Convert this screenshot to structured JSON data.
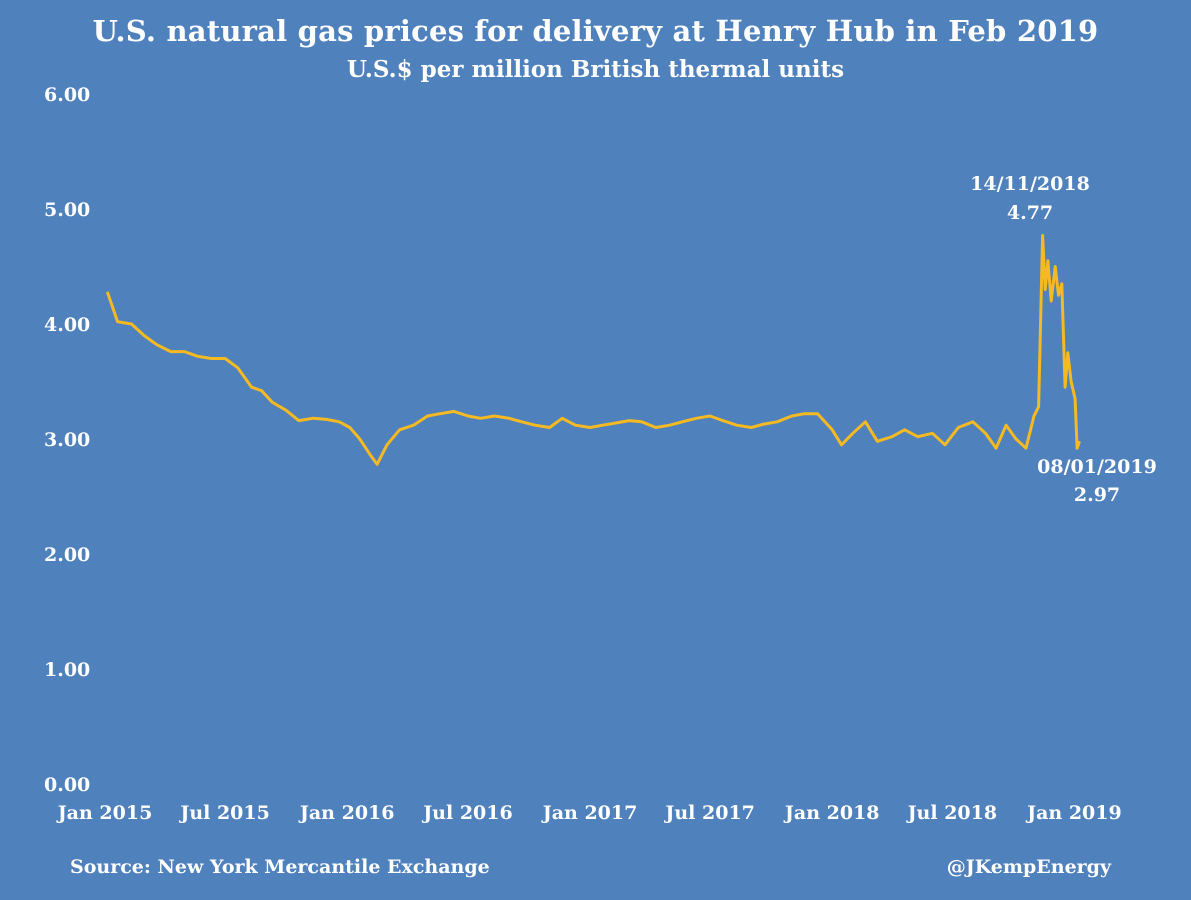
{
  "chart_data": {
    "type": "line",
    "title": "U.S. natural gas prices for delivery at Henry Hub in Feb 2019",
    "subtitle": "U.S.$ per million British thermal units",
    "ylim": [
      0,
      6
    ],
    "yticks": [
      "0.00",
      "1.00",
      "2.00",
      "3.00",
      "4.00",
      "5.00",
      "6.00"
    ],
    "xlim": [
      "2015-01-01",
      "2019-02-01"
    ],
    "xticks": [
      {
        "date": "2015-01-01",
        "label": "Jan 2015"
      },
      {
        "date": "2015-07-01",
        "label": "Jul 2015"
      },
      {
        "date": "2016-01-01",
        "label": "Jan 2016"
      },
      {
        "date": "2016-07-01",
        "label": "Jul 2016"
      },
      {
        "date": "2017-01-01",
        "label": "Jan 2017"
      },
      {
        "date": "2017-07-01",
        "label": "Jul 2017"
      },
      {
        "date": "2018-01-01",
        "label": "Jan 2018"
      },
      {
        "date": "2018-07-01",
        "label": "Jul 2018"
      },
      {
        "date": "2019-01-01",
        "label": "Jan 2019"
      }
    ],
    "grid": false,
    "line_color": "#f5b921",
    "series": [
      {
        "points": [
          [
            "2015-01-05",
            4.27
          ],
          [
            "2015-01-20",
            4.02
          ],
          [
            "2015-02-10",
            4.0
          ],
          [
            "2015-03-01",
            3.9
          ],
          [
            "2015-03-20",
            3.82
          ],
          [
            "2015-04-10",
            3.76
          ],
          [
            "2015-05-01",
            3.76
          ],
          [
            "2015-05-20",
            3.72
          ],
          [
            "2015-06-10",
            3.7
          ],
          [
            "2015-07-01",
            3.7
          ],
          [
            "2015-07-20",
            3.62
          ],
          [
            "2015-08-10",
            3.45
          ],
          [
            "2015-08-25",
            3.42
          ],
          [
            "2015-09-10",
            3.32
          ],
          [
            "2015-10-01",
            3.25
          ],
          [
            "2015-10-20",
            3.16
          ],
          [
            "2015-11-10",
            3.18
          ],
          [
            "2015-12-01",
            3.17
          ],
          [
            "2015-12-20",
            3.15
          ],
          [
            "2016-01-05",
            3.1
          ],
          [
            "2016-01-20",
            3.0
          ],
          [
            "2016-02-05",
            2.86
          ],
          [
            "2016-02-15",
            2.78
          ],
          [
            "2016-03-01",
            2.95
          ],
          [
            "2016-03-20",
            3.08
          ],
          [
            "2016-04-10",
            3.12
          ],
          [
            "2016-05-01",
            3.2
          ],
          [
            "2016-05-20",
            3.22
          ],
          [
            "2016-06-10",
            3.24
          ],
          [
            "2016-07-01",
            3.2
          ],
          [
            "2016-07-20",
            3.18
          ],
          [
            "2016-08-10",
            3.2
          ],
          [
            "2016-09-01",
            3.18
          ],
          [
            "2016-09-20",
            3.15
          ],
          [
            "2016-10-10",
            3.12
          ],
          [
            "2016-11-01",
            3.1
          ],
          [
            "2016-11-20",
            3.18
          ],
          [
            "2016-12-10",
            3.12
          ],
          [
            "2017-01-01",
            3.1
          ],
          [
            "2017-01-20",
            3.12
          ],
          [
            "2017-02-10",
            3.14
          ],
          [
            "2017-03-01",
            3.16
          ],
          [
            "2017-03-20",
            3.15
          ],
          [
            "2017-04-10",
            3.1
          ],
          [
            "2017-05-01",
            3.12
          ],
          [
            "2017-05-20",
            3.15
          ],
          [
            "2017-06-10",
            3.18
          ],
          [
            "2017-07-01",
            3.2
          ],
          [
            "2017-07-20",
            3.16
          ],
          [
            "2017-08-10",
            3.12
          ],
          [
            "2017-09-01",
            3.1
          ],
          [
            "2017-09-20",
            3.13
          ],
          [
            "2017-10-10",
            3.15
          ],
          [
            "2017-11-01",
            3.2
          ],
          [
            "2017-11-20",
            3.22
          ],
          [
            "2017-12-10",
            3.22
          ],
          [
            "2018-01-01",
            3.08
          ],
          [
            "2018-01-15",
            2.95
          ],
          [
            "2018-02-01",
            3.05
          ],
          [
            "2018-02-20",
            3.15
          ],
          [
            "2018-03-10",
            2.98
          ],
          [
            "2018-04-01",
            3.02
          ],
          [
            "2018-04-20",
            3.08
          ],
          [
            "2018-05-10",
            3.02
          ],
          [
            "2018-06-01",
            3.05
          ],
          [
            "2018-06-20",
            2.95
          ],
          [
            "2018-07-10",
            3.1
          ],
          [
            "2018-08-01",
            3.15
          ],
          [
            "2018-08-20",
            3.05
          ],
          [
            "2018-09-05",
            2.92
          ],
          [
            "2018-09-20",
            3.12
          ],
          [
            "2018-10-05",
            3.0
          ],
          [
            "2018-10-20",
            2.92
          ],
          [
            "2018-11-01",
            3.2
          ],
          [
            "2018-11-08",
            3.28
          ],
          [
            "2018-11-14",
            4.77
          ],
          [
            "2018-11-18",
            4.3
          ],
          [
            "2018-11-22",
            4.55
          ],
          [
            "2018-11-27",
            4.2
          ],
          [
            "2018-12-03",
            4.5
          ],
          [
            "2018-12-08",
            4.25
          ],
          [
            "2018-12-13",
            4.35
          ],
          [
            "2018-12-18",
            3.45
          ],
          [
            "2018-12-22",
            3.75
          ],
          [
            "2018-12-27",
            3.5
          ],
          [
            "2019-01-02",
            3.35
          ],
          [
            "2019-01-05",
            2.92
          ],
          [
            "2019-01-08",
            2.97
          ]
        ]
      }
    ],
    "annotations": [
      {
        "date": "14/11/2018",
        "value": "4.77"
      },
      {
        "date": "08/01/2019",
        "value": "2.97"
      }
    ]
  },
  "footer": {
    "source": "Source: New York Mercantile Exchange",
    "handle": "@JKempEnergy"
  }
}
